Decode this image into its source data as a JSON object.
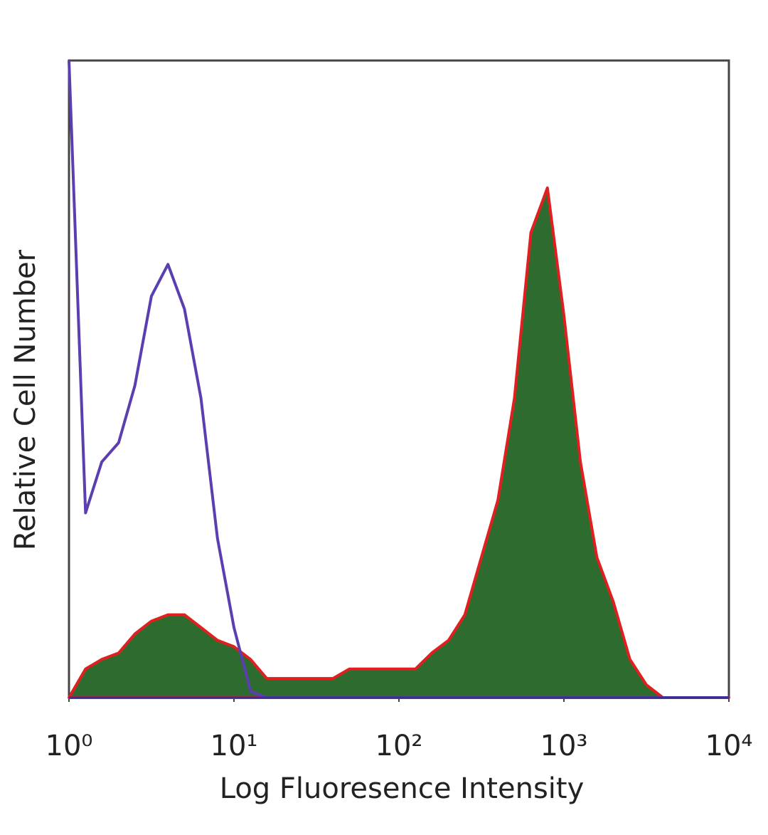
{
  "chart_data": {
    "type": "histogram",
    "xlabel": "Log Fluoresence Intensity",
    "ylabel": "Relative Cell Number",
    "xscale": "log",
    "xlim": [
      1,
      10000
    ],
    "ylim": [
      0,
      100
    ],
    "xticks": [
      {
        "value": 1,
        "label": "10⁰"
      },
      {
        "value": 10,
        "label": "10¹"
      },
      {
        "value": 100,
        "label": "10²"
      },
      {
        "value": 1000,
        "label": "10³"
      },
      {
        "value": 10000,
        "label": "10⁴"
      }
    ],
    "x": [
      1,
      1.26,
      1.58,
      2,
      2.51,
      3.16,
      3.98,
      5.01,
      6.31,
      7.94,
      10,
      12.6,
      15.8,
      20,
      25.1,
      31.6,
      39.8,
      50.1,
      63.1,
      79.4,
      100,
      126,
      158,
      200,
      251,
      316,
      398,
      501,
      631,
      794,
      1000,
      1259,
      1585,
      1995,
      2512,
      3162,
      3981,
      5012,
      6310,
      7943,
      10000
    ],
    "series": [
      {
        "color": "#e02020",
        "fill": "#2e6b2e",
        "values": [
          0,
          4.5,
          6,
          7,
          10,
          12,
          13,
          13,
          11,
          9,
          8,
          6,
          3,
          3,
          3,
          3,
          3,
          4.5,
          4.5,
          4.5,
          4.5,
          4.5,
          7,
          9,
          13,
          22,
          31,
          47,
          73,
          80,
          60,
          37,
          22,
          15,
          6,
          2,
          0,
          0,
          0,
          0,
          0
        ]
      },
      {
        "color": "#5b3fb0",
        "values": [
          100,
          29,
          37,
          40,
          49,
          63,
          68,
          61,
          47,
          25,
          11,
          1,
          0,
          0,
          0,
          0,
          0,
          0,
          0,
          0,
          0,
          0,
          0,
          0,
          0,
          0,
          0,
          0,
          0,
          0,
          0,
          0,
          0,
          0,
          0,
          0,
          0,
          0,
          0,
          0,
          0
        ]
      }
    ]
  }
}
